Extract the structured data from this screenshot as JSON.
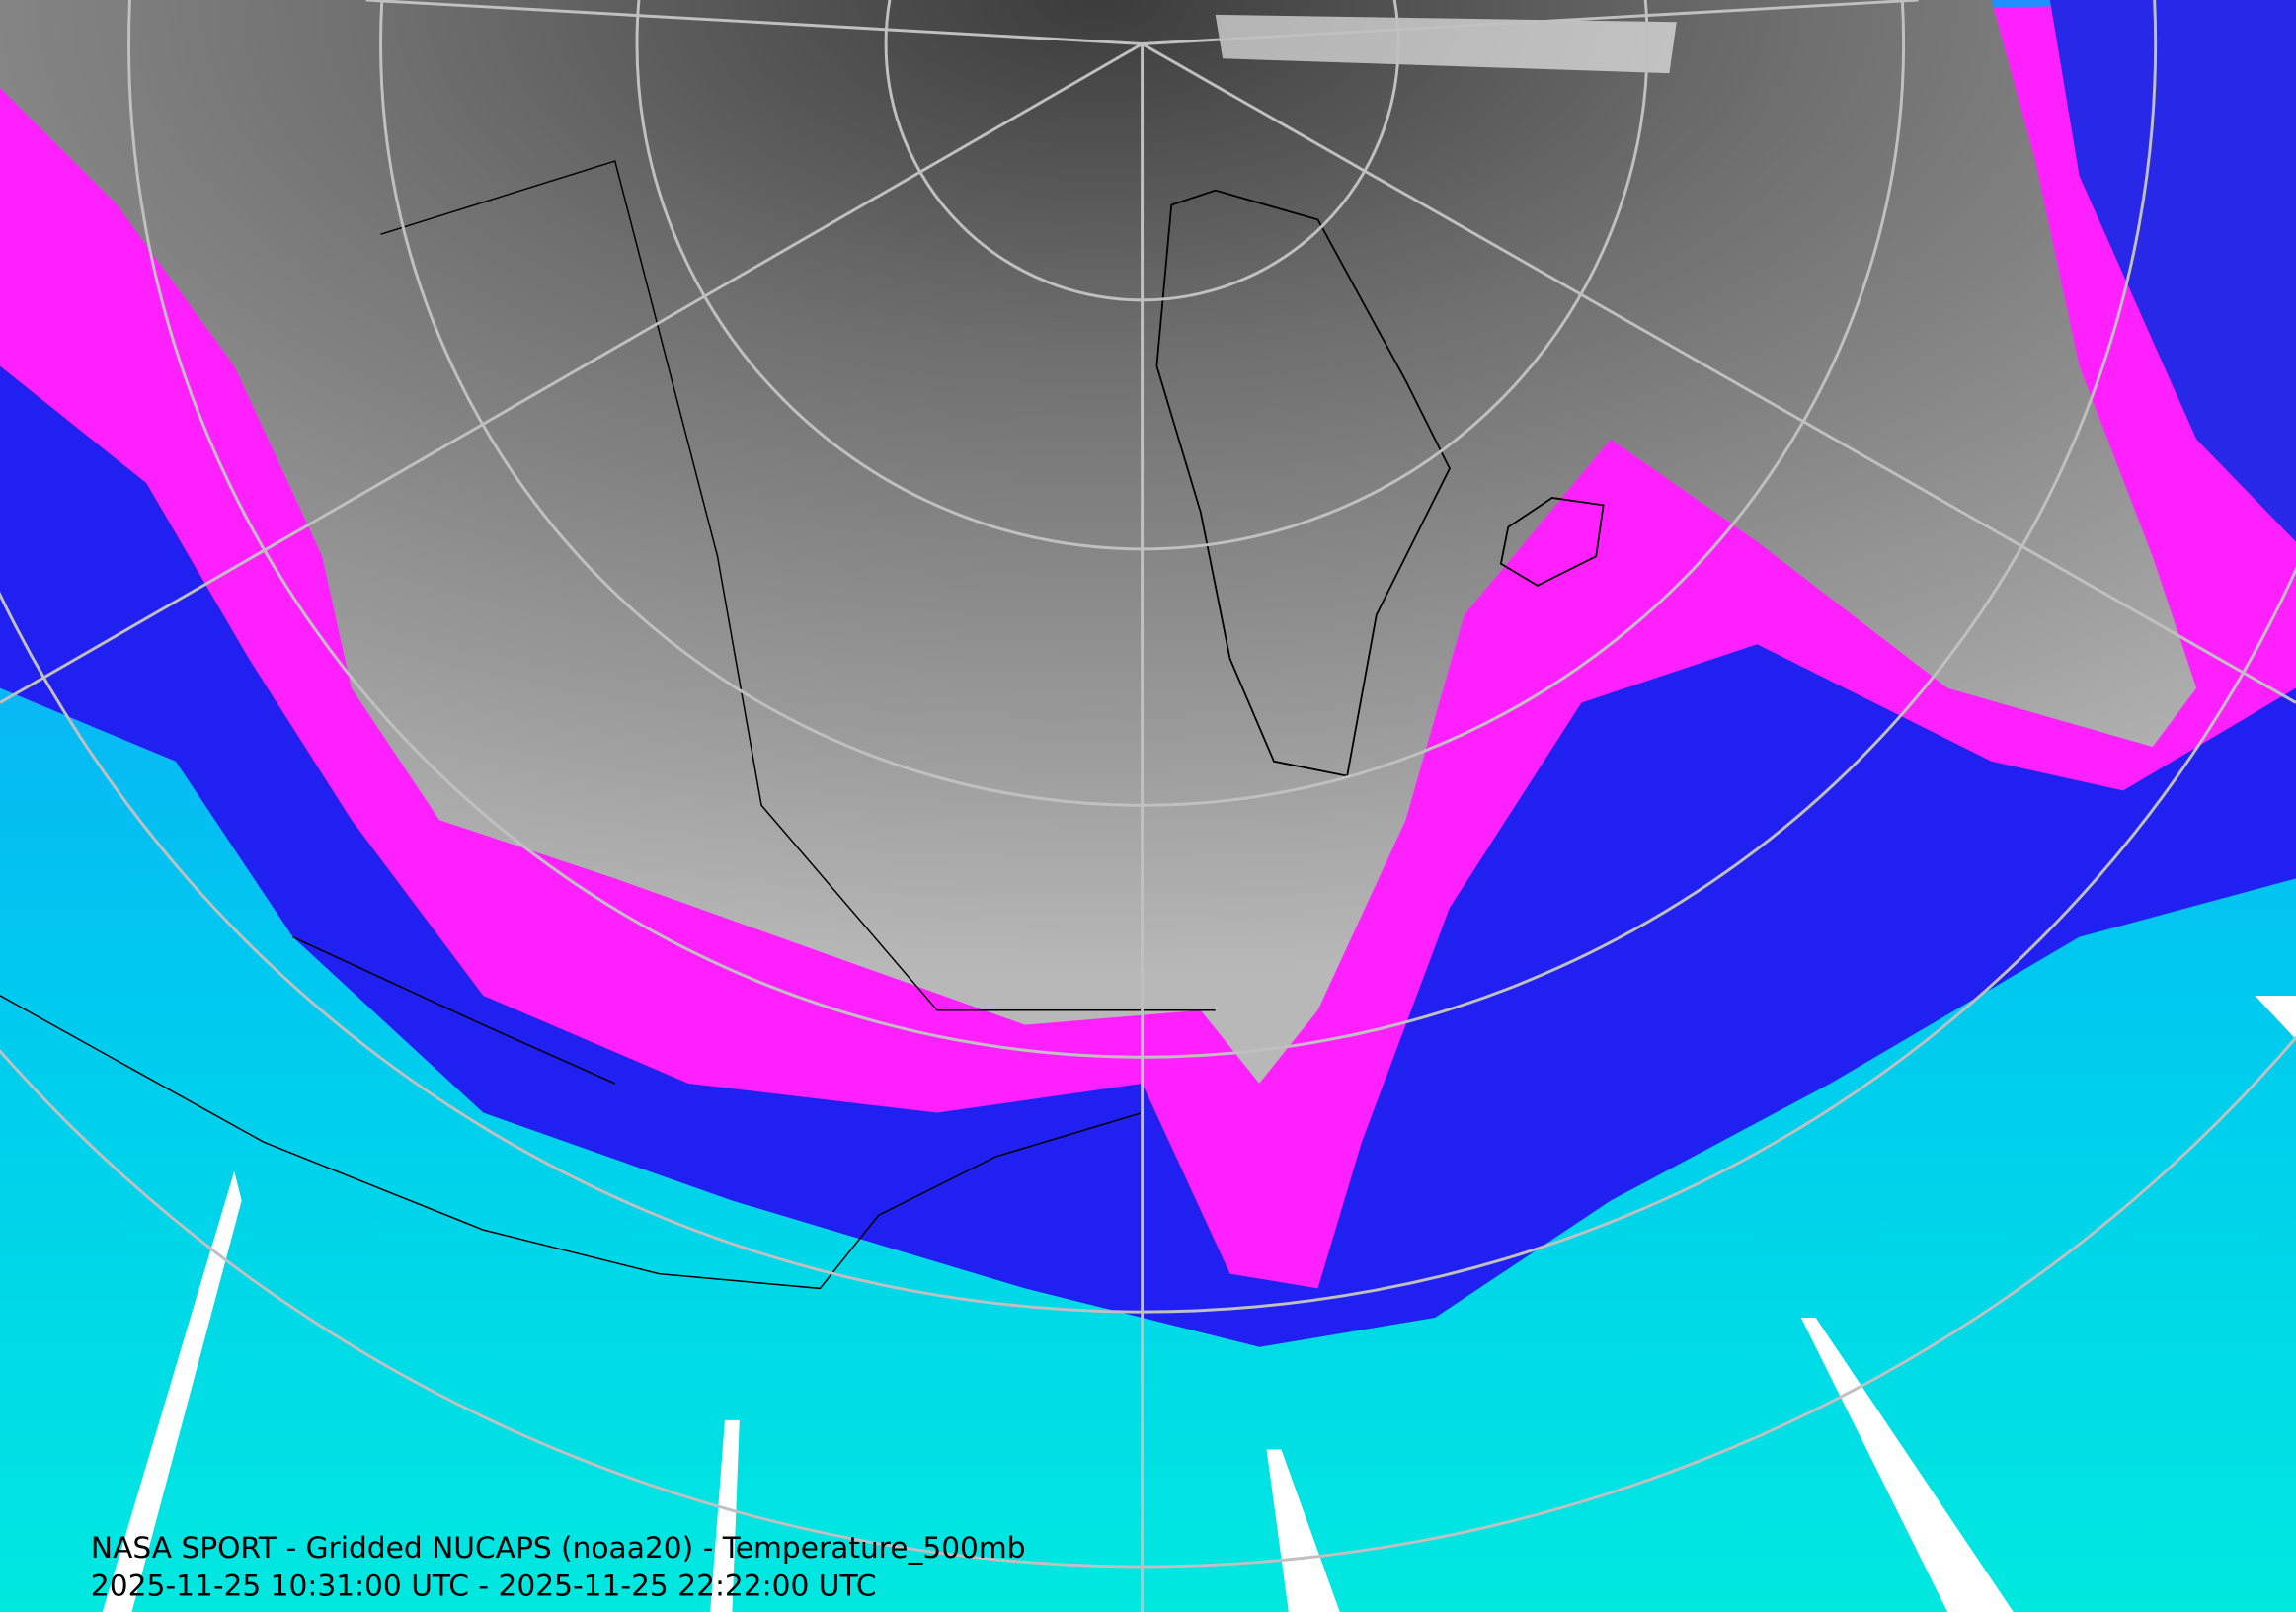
{
  "caption": {
    "title": "NASA SPORT - Gridded NUCAPS (noaa20) - Temperature_500mb",
    "time_range": "2025-11-25 10:31:00 UTC - 2025-11-25 22:22:00 UTC"
  }
}
